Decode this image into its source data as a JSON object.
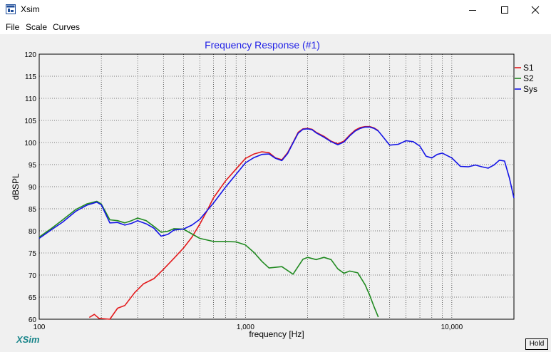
{
  "window": {
    "title": "Xsim"
  },
  "menu": [
    {
      "label": "File"
    },
    {
      "label": "Scale"
    },
    {
      "label": "Curves"
    }
  ],
  "controls": {
    "minimize": "minimize",
    "maximize": "maximize",
    "close": "close"
  },
  "logo_text": "XSim",
  "hold_label": "Hold",
  "icons": [
    "app-icon",
    "minimize-icon",
    "maximize-icon",
    "close-icon"
  ],
  "chart_data": {
    "type": "line",
    "title": "Frequency Response (#1)",
    "xlabel": "frequency [Hz]",
    "ylabel": "dBSPL",
    "xscale": "log",
    "xlim": [
      100,
      20000
    ],
    "ylim": [
      60,
      120
    ],
    "y_ticks": [
      60,
      65,
      70,
      75,
      80,
      85,
      90,
      95,
      100,
      105,
      110,
      115,
      120
    ],
    "x_tick_labels": [
      {
        "value": 100,
        "label": "100"
      },
      {
        "value": 1000,
        "label": "1,000"
      },
      {
        "value": 10000,
        "label": "10,000"
      }
    ],
    "grid": true,
    "legend_position": "right",
    "series": [
      {
        "name": "S1",
        "color": "#e31a1c",
        "x": [
          175,
          185,
          195,
          220,
          240,
          260,
          290,
          320,
          360,
          400,
          450,
          500,
          550,
          600,
          650,
          700,
          800,
          900,
          1000,
          1100,
          1200,
          1300,
          1400,
          1500,
          1600,
          1700,
          1800,
          1900,
          2000,
          2100,
          2200,
          2400,
          2600,
          2800,
          3000,
          3200,
          3400,
          3600,
          3800,
          4000,
          4200,
          4400
        ],
        "y": [
          60.4,
          61.1,
          60.2,
          60,
          62.5,
          63.1,
          66,
          68,
          69.2,
          71.3,
          73.8,
          76.1,
          78.6,
          81.5,
          84.5,
          87.5,
          91.3,
          94,
          96.4,
          97.4,
          97.9,
          97.7,
          96.5,
          96.1,
          97.7,
          100,
          102.3,
          103.1,
          103.2,
          103,
          102.3,
          101.4,
          100.3,
          99.7,
          100.3,
          101.7,
          102.8,
          103.4,
          103.6,
          103.6,
          103.3,
          102.7
        ]
      },
      {
        "name": "S2",
        "color": "#208a20",
        "x": [
          100,
          115,
          130,
          150,
          170,
          190,
          200,
          220,
          240,
          260,
          280,
          300,
          330,
          360,
          390,
          420,
          450,
          500,
          600,
          700,
          800,
          900,
          1000,
          1100,
          1200,
          1300,
          1500,
          1700,
          1900,
          2000,
          2200,
          2400,
          2600,
          2800,
          3000,
          3200,
          3500,
          3800,
          4000,
          4200,
          4400
        ],
        "y": [
          78.6,
          80.6,
          82.5,
          84.8,
          86.1,
          86.7,
          86.1,
          82.5,
          82.3,
          81.8,
          82.3,
          82.9,
          82.3,
          81,
          79.7,
          79.9,
          80.5,
          80.4,
          78.3,
          77.6,
          77.6,
          77.5,
          76.8,
          75.1,
          73.1,
          71.6,
          71.9,
          70.2,
          73.6,
          74,
          73.5,
          74,
          73.5,
          71.4,
          70.4,
          70.9,
          70.5,
          67.8,
          65.4,
          62.8,
          60.5
        ]
      },
      {
        "name": "Sys",
        "color": "#1414e6",
        "x": [
          100,
          115,
          130,
          150,
          170,
          190,
          200,
          220,
          240,
          260,
          280,
          300,
          330,
          360,
          390,
          420,
          450,
          500,
          550,
          600,
          700,
          800,
          900,
          1000,
          1100,
          1200,
          1300,
          1400,
          1500,
          1600,
          1700,
          1800,
          1900,
          2000,
          2100,
          2200,
          2400,
          2600,
          2800,
          3000,
          3200,
          3400,
          3600,
          3800,
          4000,
          4200,
          4400,
          4600,
          5000,
          5500,
          6000,
          6500,
          7000,
          7500,
          8000,
          8500,
          9000,
          10000,
          11000,
          12000,
          13000,
          14000,
          15000,
          16000,
          17000,
          18000,
          19000,
          20000
        ],
        "y": [
          78.3,
          80.3,
          82,
          84.4,
          85.8,
          86.5,
          85.9,
          81.8,
          81.9,
          81.3,
          81.7,
          82.3,
          81.6,
          80.6,
          78.8,
          79.2,
          80.2,
          80.4,
          81.3,
          82.6,
          86.3,
          89.9,
          92.8,
          95.4,
          96.6,
          97.3,
          97.4,
          96.4,
          95.9,
          97.5,
          99.9,
          102.1,
          103,
          103.1,
          102.9,
          102.2,
          101.2,
          100.2,
          99.5,
          100.1,
          101.5,
          102.6,
          103.2,
          103.5,
          103.5,
          103.2,
          102.6,
          101.5,
          99.4,
          99.6,
          100.4,
          100.2,
          99.2,
          96.9,
          96.5,
          97.3,
          97.6,
          96.5,
          94.6,
          94.5,
          94.9,
          94.5,
          94.2,
          94.9,
          96,
          95.8,
          92,
          87.4
        ]
      }
    ]
  }
}
